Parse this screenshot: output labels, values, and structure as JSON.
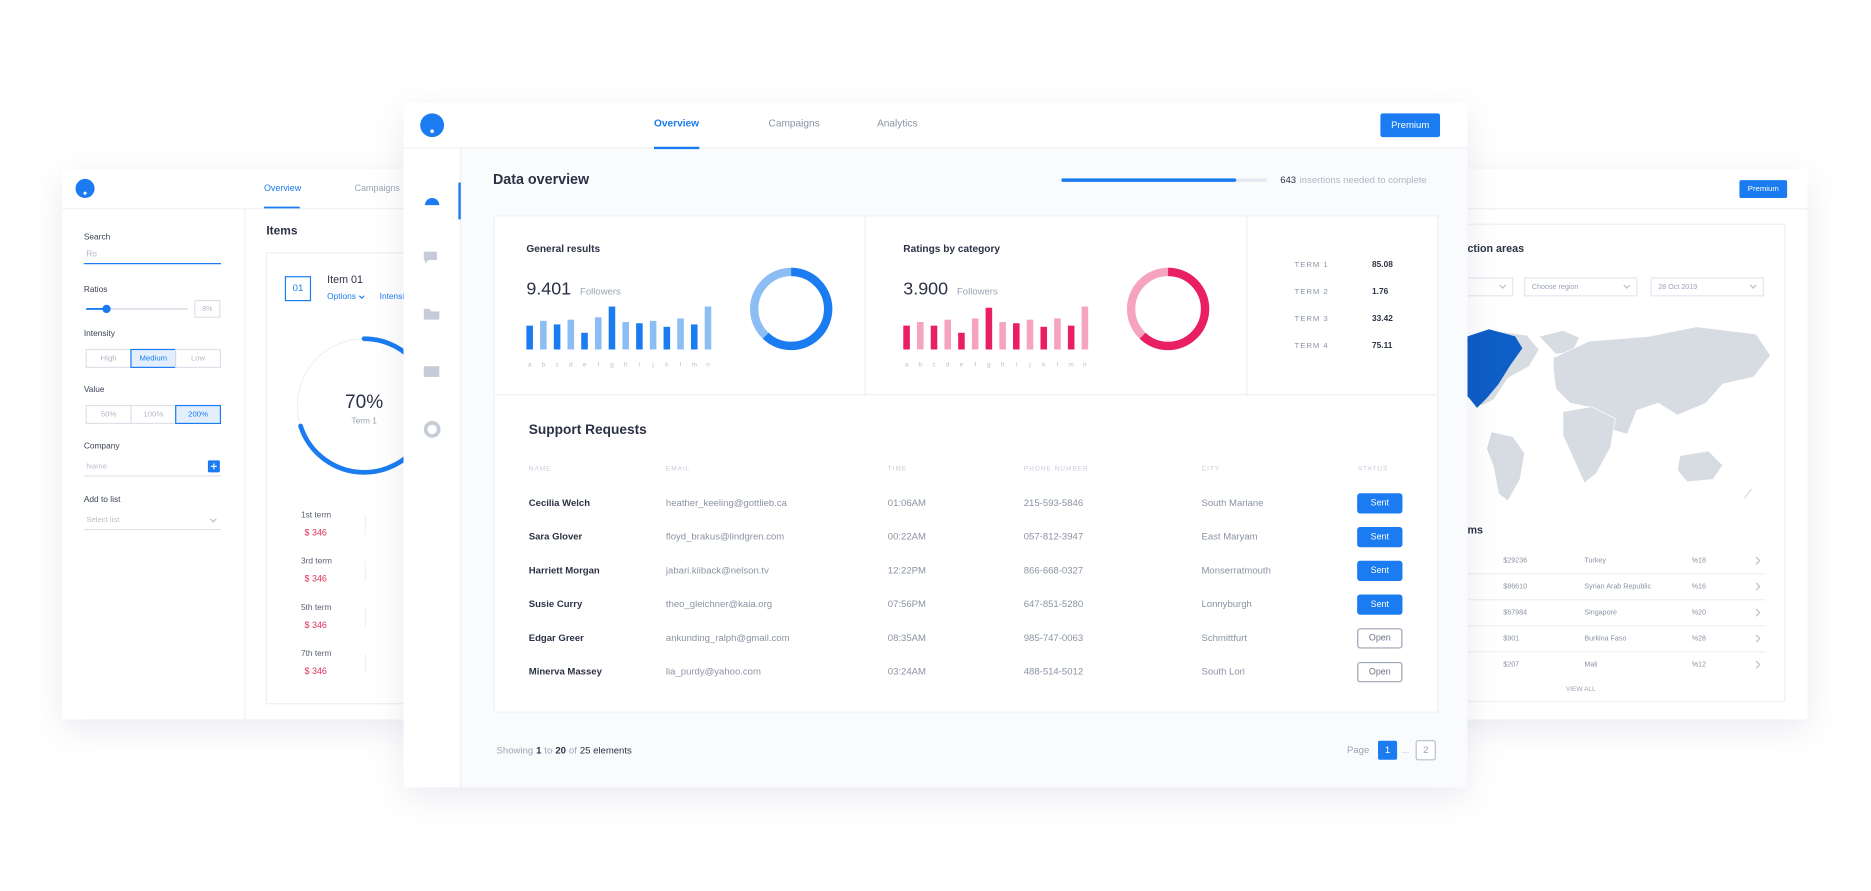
{
  "back_left": {
    "nav": [
      "Overview",
      "Campaigns"
    ],
    "filters": {
      "search_label": "Search",
      "search_value": "Ro",
      "ratios_label": "Ratios",
      "ratios_value": "8%",
      "intensity_label": "Intensity",
      "intensity_options": [
        "High",
        "Medium",
        "Low"
      ],
      "value_label": "Value",
      "value_options": [
        "50%",
        "100%",
        "200%"
      ],
      "company_label": "Company",
      "company_placeholder": "Name",
      "add_label": "Add to list",
      "add_placeholder": "Select list"
    },
    "items_title": "Items",
    "item": {
      "number": "01",
      "title": "Item 01",
      "options": "Options",
      "intensity": "Intensi",
      "donut_text": "70%",
      "donut_value": 70,
      "donut_label": "Term 1"
    },
    "terms": [
      {
        "label": "1st term",
        "value": "$ 346"
      },
      {
        "label": "3rd term",
        "value": "$ 346"
      },
      {
        "label": "5th term",
        "value": "$ 346"
      },
      {
        "label": "7th term",
        "value": "$ 346"
      }
    ]
  },
  "back_right": {
    "premium": "Premium",
    "title": "ction areas",
    "selects": [
      "Choose region",
      "28 Oct 2019"
    ],
    "list_title": "ms",
    "rows": [
      [
        "$29236",
        "Turkey",
        "%18"
      ],
      [
        "$86610",
        "Syrian Arab Republic",
        "%16"
      ],
      [
        "$67984",
        "Singapore",
        "%20"
      ],
      [
        "$901",
        "Burkina Faso",
        "%28"
      ],
      [
        "$207",
        "Mali",
        "%12"
      ]
    ],
    "view_all": "VIEW ALL"
  },
  "main": {
    "nav": [
      "Overview",
      "Campaigns",
      "Analytics"
    ],
    "premium": "Premium",
    "title": "Data overview",
    "progress": {
      "count": "643",
      "text": "insertions needed to complete",
      "fraction": 0.84
    },
    "cards": [
      {
        "title": "General results",
        "value": "9.401",
        "unit": "Followers",
        "colors": [
          "#1a7cf0",
          "#8cbdf4"
        ],
        "donut_value": 62,
        "bar_values": [
          20,
          24,
          21,
          25,
          14,
          27,
          36,
          23,
          22,
          24,
          19,
          26,
          21,
          36
        ]
      },
      {
        "title": "Ratings by category",
        "value": "3.900",
        "unit": "Followers",
        "colors": [
          "#e91e63",
          "#f5a3c0"
        ],
        "donut_value": 62,
        "bar_values": [
          20,
          23,
          20,
          25,
          14,
          26,
          35,
          23,
          22,
          25,
          19,
          26,
          20,
          36
        ]
      }
    ],
    "bar_letters": [
      "a",
      "b",
      "c",
      "d",
      "e",
      "f",
      "g",
      "h",
      "i",
      "j",
      "k",
      "l",
      "m",
      "n"
    ],
    "terms": [
      [
        "TERM 1",
        "85.08"
      ],
      [
        "TERM 2",
        "1.76"
      ],
      [
        "TERM 3",
        "33.42"
      ],
      [
        "TERM 4",
        "75.11"
      ]
    ],
    "support": {
      "title": "Support Requests",
      "headers": [
        "NAME",
        "EMAIL",
        "TIME",
        "PHONE NUMBER",
        "CITY",
        "STATUS"
      ],
      "rows": [
        [
          "Cecilia Welch",
          "heather_keeling@gottlieb.ca",
          "01:06AM",
          "215-593-5846",
          "South Mariane",
          "Sent"
        ],
        [
          "Sara Glover",
          "floyd_brakus@lindgren.com",
          "00:22AM",
          "057-812-3947",
          "East Maryam",
          "Sent"
        ],
        [
          "Harriett Morgan",
          "jabari.kiiback@nelson.tv",
          "12:22PM",
          "866-668-0327",
          "Monserratmouth",
          "Sent"
        ],
        [
          "Susie Curry",
          "theo_gleichner@kaia.org",
          "07:56PM",
          "647-851-5280",
          "Lonnyburgh",
          "Sent"
        ],
        [
          "Edgar Greer",
          "ankunding_ralph@gmail.com",
          "08:35AM",
          "985-747-0063",
          "Schmittfurt",
          "Open"
        ],
        [
          "Minerva Massey",
          "lia_purdy@yahoo.com",
          "03:24AM",
          "488-514-5012",
          "South Lori",
          "Open"
        ]
      ]
    },
    "footer": {
      "showing": [
        "Showing",
        "1",
        "to",
        "20",
        "of",
        "25 elements"
      ],
      "page_label": "Page",
      "pages": [
        "1",
        "...",
        "2"
      ]
    }
  }
}
